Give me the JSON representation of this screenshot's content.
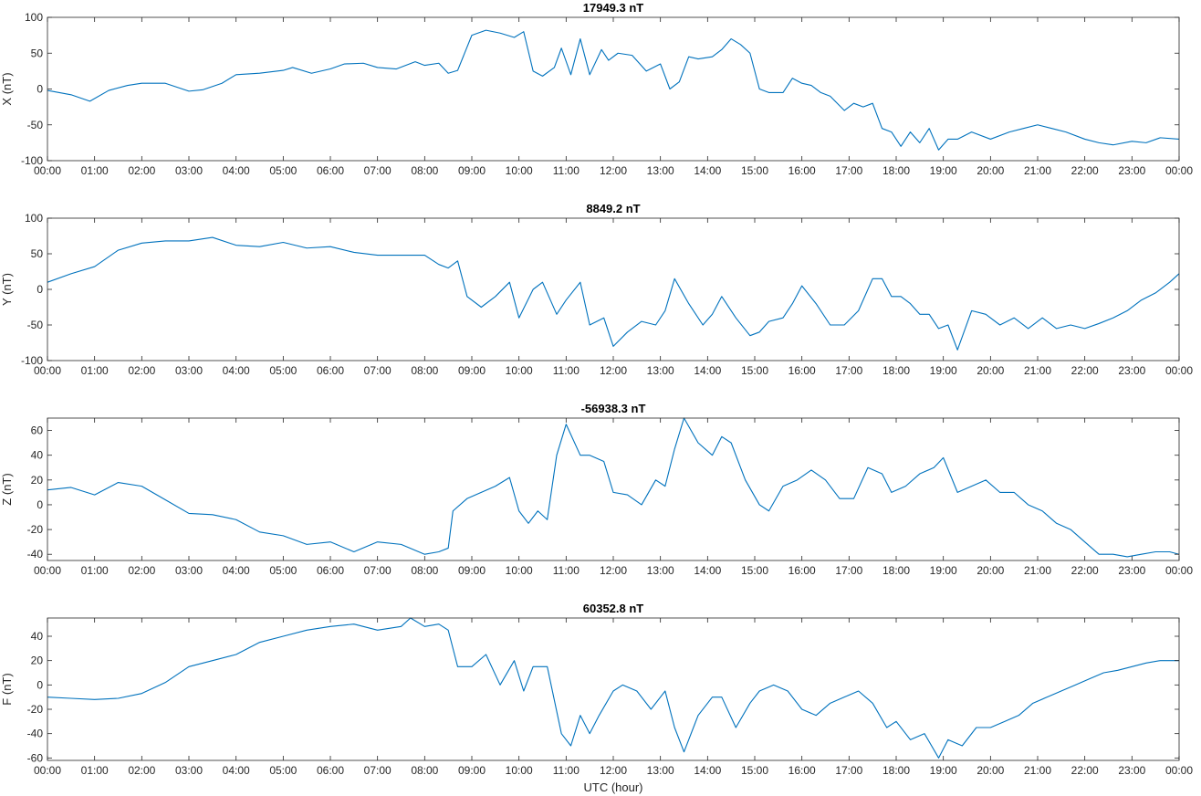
{
  "chart_data": [
    {
      "type": "line",
      "title": "17949.3 nT",
      "ylabel": "X (nT)",
      "xlabel": "",
      "xlim": [
        "00:00",
        "00:00"
      ],
      "ylim": [
        -100,
        100
      ],
      "yticks": [
        -100,
        -50,
        0,
        50,
        100
      ],
      "xticks": [
        "00:00",
        "01:00",
        "02:00",
        "03:00",
        "04:00",
        "05:00",
        "06:00",
        "07:00",
        "08:00",
        "09:00",
        "10:00",
        "11:00",
        "12:00",
        "13:00",
        "14:00",
        "15:00",
        "16:00",
        "17:00",
        "18:00",
        "19:00",
        "20:00",
        "21:00",
        "22:00",
        "23:00",
        "00:00"
      ],
      "grid": false,
      "color": "#0072BD",
      "x": [
        0,
        0.5,
        0.9,
        1.3,
        1.7,
        2.0,
        2.5,
        3.0,
        3.3,
        3.7,
        4.0,
        4.5,
        5.0,
        5.2,
        5.6,
        6.0,
        6.3,
        6.7,
        7.0,
        7.4,
        7.8,
        8.0,
        8.3,
        8.5,
        8.7,
        9.0,
        9.3,
        9.6,
        9.9,
        10.1,
        10.3,
        10.5,
        10.75,
        10.9,
        11.1,
        11.3,
        11.5,
        11.75,
        11.9,
        12.1,
        12.4,
        12.7,
        13.0,
        13.2,
        13.4,
        13.6,
        13.8,
        14.1,
        14.3,
        14.5,
        14.7,
        14.9,
        15.1,
        15.3,
        15.6,
        15.8,
        16.0,
        16.2,
        16.4,
        16.6,
        16.9,
        17.1,
        17.3,
        17.5,
        17.7,
        17.9,
        18.1,
        18.3,
        18.5,
        18.7,
        18.9,
        19.1,
        19.3,
        19.6,
        20.0,
        20.4,
        20.7,
        21.0,
        21.3,
        21.6,
        22.0,
        22.3,
        22.6,
        23.0,
        23.3,
        23.6,
        24.0
      ],
      "y": [
        -2,
        -8,
        -17,
        -2,
        5,
        8,
        8,
        -3,
        -1,
        8,
        20,
        22,
        26,
        30,
        22,
        28,
        35,
        36,
        30,
        28,
        38,
        33,
        36,
        22,
        26,
        75,
        82,
        78,
        72,
        80,
        25,
        18,
        30,
        57,
        20,
        70,
        20,
        55,
        40,
        50,
        47,
        25,
        35,
        0,
        10,
        45,
        42,
        45,
        55,
        70,
        62,
        50,
        0,
        -5,
        -5,
        15,
        8,
        5,
        -5,
        -10,
        -30,
        -20,
        -25,
        -20,
        -55,
        -60,
        -80,
        -60,
        -75,
        -55,
        -85,
        -70,
        -70,
        -60,
        -70,
        -60,
        -55,
        -50,
        -55,
        -60,
        -70,
        -75,
        -78,
        -73,
        -75,
        -68,
        -70
      ]
    },
    {
      "type": "line",
      "title": "8849.2 nT",
      "ylabel": "Y (nT)",
      "xlabel": "",
      "xlim": [
        "00:00",
        "00:00"
      ],
      "ylim": [
        -100,
        100
      ],
      "yticks": [
        -100,
        -50,
        0,
        50,
        100
      ],
      "xticks": [
        "00:00",
        "01:00",
        "02:00",
        "03:00",
        "04:00",
        "05:00",
        "06:00",
        "07:00",
        "08:00",
        "09:00",
        "10:00",
        "11:00",
        "12:00",
        "13:00",
        "14:00",
        "15:00",
        "16:00",
        "17:00",
        "18:00",
        "19:00",
        "20:00",
        "21:00",
        "22:00",
        "23:00",
        "00:00"
      ],
      "grid": false,
      "color": "#0072BD",
      "x": [
        0,
        0.5,
        1.0,
        1.5,
        2.0,
        2.5,
        3.0,
        3.5,
        4.0,
        4.5,
        5.0,
        5.5,
        6.0,
        6.5,
        7.0,
        7.5,
        8.0,
        8.3,
        8.5,
        8.7,
        8.9,
        9.2,
        9.5,
        9.8,
        10.0,
        10.3,
        10.5,
        10.8,
        11.0,
        11.3,
        11.5,
        11.8,
        12.0,
        12.3,
        12.6,
        12.9,
        13.1,
        13.3,
        13.6,
        13.9,
        14.1,
        14.3,
        14.6,
        14.9,
        15.1,
        15.3,
        15.6,
        15.8,
        16.0,
        16.3,
        16.6,
        16.9,
        17.2,
        17.5,
        17.7,
        17.9,
        18.1,
        18.3,
        18.5,
        18.7,
        18.9,
        19.1,
        19.3,
        19.6,
        19.9,
        20.2,
        20.5,
        20.8,
        21.1,
        21.4,
        21.7,
        22.0,
        22.3,
        22.6,
        22.9,
        23.2,
        23.5,
        23.8,
        24.0
      ],
      "y": [
        10,
        22,
        32,
        55,
        65,
        68,
        68,
        73,
        62,
        60,
        66,
        58,
        60,
        52,
        48,
        48,
        48,
        35,
        30,
        40,
        -10,
        -25,
        -10,
        10,
        -40,
        0,
        10,
        -35,
        -15,
        10,
        -50,
        -40,
        -80,
        -60,
        -45,
        -50,
        -30,
        15,
        -20,
        -50,
        -35,
        -10,
        -40,
        -65,
        -60,
        -45,
        -40,
        -20,
        5,
        -20,
        -50,
        -50,
        -30,
        15,
        15,
        -10,
        -10,
        -20,
        -35,
        -35,
        -55,
        -50,
        -85,
        -30,
        -35,
        -50,
        -40,
        -55,
        -40,
        -55,
        -50,
        -55,
        -48,
        -40,
        -30,
        -15,
        -5,
        10,
        22
      ]
    },
    {
      "type": "line",
      "title": "-56938.3 nT",
      "ylabel": "Z (nT)",
      "xlabel": "",
      "xlim": [
        "00:00",
        "00:00"
      ],
      "ylim": [
        -45,
        70
      ],
      "yticks": [
        -40,
        -20,
        0,
        20,
        40,
        60
      ],
      "xticks": [
        "00:00",
        "01:00",
        "02:00",
        "03:00",
        "04:00",
        "05:00",
        "06:00",
        "07:00",
        "08:00",
        "09:00",
        "10:00",
        "11:00",
        "12:00",
        "13:00",
        "14:00",
        "15:00",
        "16:00",
        "17:00",
        "18:00",
        "19:00",
        "20:00",
        "21:00",
        "22:00",
        "23:00",
        "00:00"
      ],
      "grid": false,
      "color": "#0072BD",
      "x": [
        0,
        0.5,
        1.0,
        1.5,
        2.0,
        2.5,
        3.0,
        3.5,
        4.0,
        4.5,
        5.0,
        5.5,
        6.0,
        6.5,
        7.0,
        7.5,
        8.0,
        8.3,
        8.5,
        8.6,
        8.9,
        9.2,
        9.5,
        9.8,
        10.0,
        10.2,
        10.4,
        10.6,
        10.8,
        11.0,
        11.3,
        11.5,
        11.8,
        12.0,
        12.3,
        12.6,
        12.9,
        13.1,
        13.3,
        13.5,
        13.8,
        14.1,
        14.3,
        14.5,
        14.8,
        15.1,
        15.3,
        15.6,
        15.9,
        16.2,
        16.5,
        16.8,
        17.1,
        17.4,
        17.7,
        17.9,
        18.2,
        18.5,
        18.8,
        19.0,
        19.3,
        19.6,
        19.9,
        20.2,
        20.5,
        20.8,
        21.1,
        21.4,
        21.7,
        22.0,
        22.3,
        22.6,
        22.9,
        23.2,
        23.5,
        23.8,
        24.0
      ],
      "y": [
        12,
        14,
        8,
        18,
        15,
        4,
        -7,
        -8,
        -12,
        -22,
        -25,
        -32,
        -30,
        -38,
        -30,
        -32,
        -40,
        -38,
        -35,
        -5,
        5,
        10,
        15,
        22,
        -5,
        -15,
        -5,
        -12,
        40,
        65,
        40,
        40,
        35,
        10,
        8,
        0,
        20,
        15,
        45,
        70,
        50,
        40,
        55,
        50,
        20,
        0,
        -5,
        15,
        20,
        28,
        20,
        5,
        5,
        30,
        25,
        10,
        15,
        25,
        30,
        38,
        10,
        15,
        20,
        10,
        10,
        0,
        -5,
        -15,
        -20,
        -30,
        -40,
        -40,
        -42,
        -40,
        -38,
        -38,
        -40
      ]
    },
    {
      "type": "line",
      "title": "60352.8 nT",
      "ylabel": "F (nT)",
      "xlabel": "UTC (hour)",
      "xlim": [
        "00:00",
        "00:00"
      ],
      "ylim": [
        -62,
        55
      ],
      "yticks": [
        -60,
        -40,
        -20,
        0,
        20,
        40
      ],
      "xticks": [
        "00:00",
        "01:00",
        "02:00",
        "03:00",
        "04:00",
        "05:00",
        "06:00",
        "07:00",
        "08:00",
        "09:00",
        "10:00",
        "11:00",
        "12:00",
        "13:00",
        "14:00",
        "15:00",
        "16:00",
        "17:00",
        "18:00",
        "19:00",
        "20:00",
        "21:00",
        "22:00",
        "23:00",
        "00:00"
      ],
      "grid": false,
      "color": "#0072BD",
      "x": [
        0,
        0.5,
        1.0,
        1.5,
        2.0,
        2.5,
        3.0,
        3.5,
        4.0,
        4.5,
        5.0,
        5.5,
        6.0,
        6.5,
        7.0,
        7.5,
        7.7,
        8.0,
        8.3,
        8.5,
        8.7,
        9.0,
        9.3,
        9.6,
        9.9,
        10.1,
        10.3,
        10.6,
        10.9,
        11.1,
        11.3,
        11.5,
        11.7,
        12.0,
        12.2,
        12.5,
        12.8,
        13.1,
        13.3,
        13.5,
        13.8,
        14.1,
        14.3,
        14.6,
        14.9,
        15.1,
        15.4,
        15.7,
        16.0,
        16.3,
        16.6,
        16.9,
        17.2,
        17.5,
        17.8,
        18.0,
        18.3,
        18.6,
        18.9,
        19.1,
        19.4,
        19.7,
        20.0,
        20.3,
        20.6,
        20.9,
        21.2,
        21.5,
        21.8,
        22.1,
        22.4,
        22.7,
        23.0,
        23.3,
        23.6,
        24.0
      ],
      "y": [
        -10,
        -11,
        -12,
        -11,
        -7,
        2,
        15,
        20,
        25,
        35,
        40,
        45,
        48,
        50,
        45,
        48,
        55,
        48,
        50,
        45,
        15,
        15,
        25,
        0,
        20,
        -5,
        15,
        15,
        -40,
        -50,
        -25,
        -40,
        -25,
        -5,
        0,
        -5,
        -20,
        -5,
        -35,
        -55,
        -25,
        -10,
        -10,
        -35,
        -15,
        -5,
        0,
        -5,
        -20,
        -25,
        -15,
        -10,
        -5,
        -15,
        -35,
        -30,
        -45,
        -40,
        -60,
        -45,
        -50,
        -35,
        -35,
        -30,
        -25,
        -15,
        -10,
        -5,
        0,
        5,
        10,
        12,
        15,
        18,
        20,
        20
      ]
    }
  ]
}
